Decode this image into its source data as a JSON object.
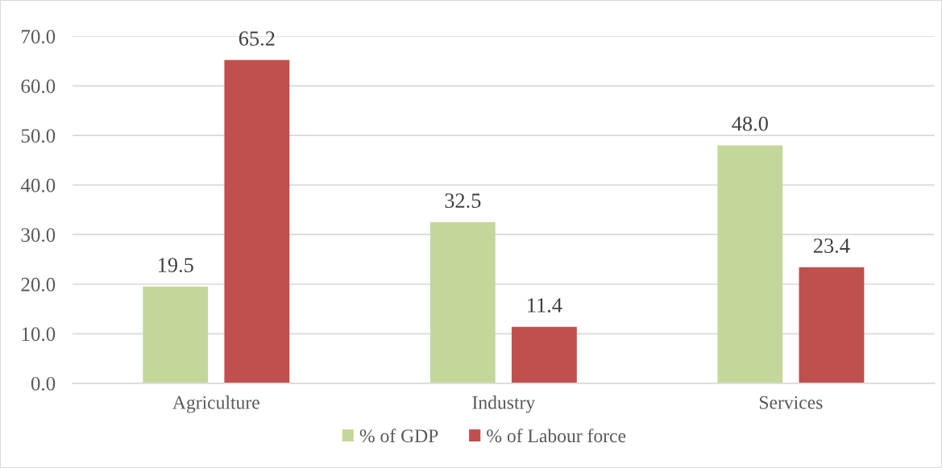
{
  "chart_data": {
    "type": "bar",
    "categories": [
      "Agriculture",
      "Industry",
      "Services"
    ],
    "series": [
      {
        "name": "% of GDP",
        "color": "#c4d79b",
        "values": [
          19.5,
          32.5,
          48.0
        ],
        "value_labels": [
          "19.5",
          "32.5",
          "48.0"
        ]
      },
      {
        "name": "% of Labour force",
        "color": "#c0504d",
        "values": [
          65.2,
          11.4,
          23.4
        ],
        "value_labels": [
          "65.2",
          "11.4",
          "23.4"
        ]
      }
    ],
    "ylim": [
      0,
      70
    ],
    "yticks": [
      {
        "value": 0,
        "label": "0.0"
      },
      {
        "value": 10,
        "label": "10.0"
      },
      {
        "value": 20,
        "label": "20.0"
      },
      {
        "value": 30,
        "label": "30.0"
      },
      {
        "value": 40,
        "label": "40.0"
      },
      {
        "value": 50,
        "label": "50.0"
      },
      {
        "value": 60,
        "label": "60.0"
      },
      {
        "value": 70,
        "label": "70.0"
      }
    ],
    "grid": "y",
    "legend": "bottom"
  }
}
